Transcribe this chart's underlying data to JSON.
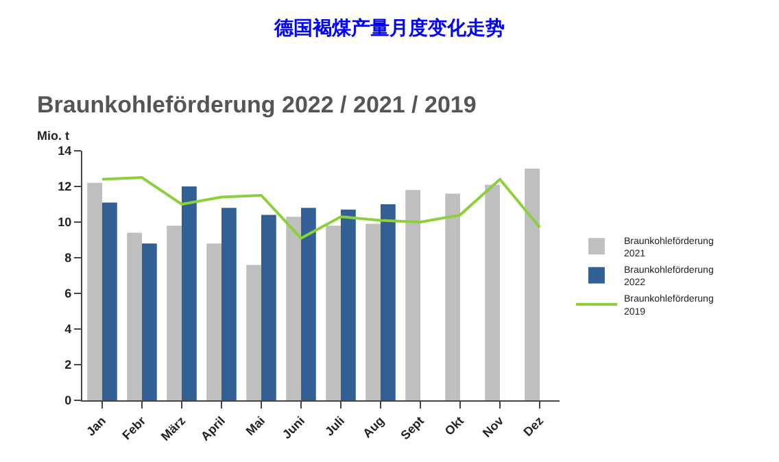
{
  "chart_data": {
    "type": "bar",
    "title": "德国褐煤产量月度变化走势",
    "subtitle": "Braunkohleförderung 2022 / 2021 / 2019",
    "ylabel": "Mio. t",
    "categories": [
      "Jan",
      "Febr",
      "März",
      "April",
      "Mai",
      "Juni",
      "Juli",
      "Aug",
      "Sept",
      "Okt",
      "Nov",
      "Dez"
    ],
    "series": [
      {
        "name": "Braunkohleförderung 2021",
        "color": "#bfbfbf",
        "values": [
          12.2,
          9.4,
          9.8,
          8.8,
          7.6,
          10.3,
          9.8,
          9.9,
          11.8,
          11.6,
          12.1,
          13.0
        ]
      },
      {
        "name": "Braunkohleförderung 2022",
        "color": "#336094",
        "values": [
          11.1,
          8.8,
          12.0,
          10.8,
          10.4,
          10.8,
          10.7,
          11.0,
          null,
          null,
          null,
          null
        ]
      },
      {
        "name": "Braunkohleförderung 2019",
        "color": "#8cd03c",
        "type": "line",
        "values": [
          12.4,
          12.5,
          11.0,
          11.4,
          11.5,
          9.1,
          10.3,
          10.1,
          10.0,
          10.4,
          12.4,
          9.7
        ]
      }
    ],
    "ylim": [
      0,
      14
    ],
    "yticks": [
      0,
      2,
      4,
      6,
      8,
      10,
      12,
      14
    ],
    "grid": false,
    "legend": "right",
    "marker": "none",
    "line_style": "solid"
  }
}
